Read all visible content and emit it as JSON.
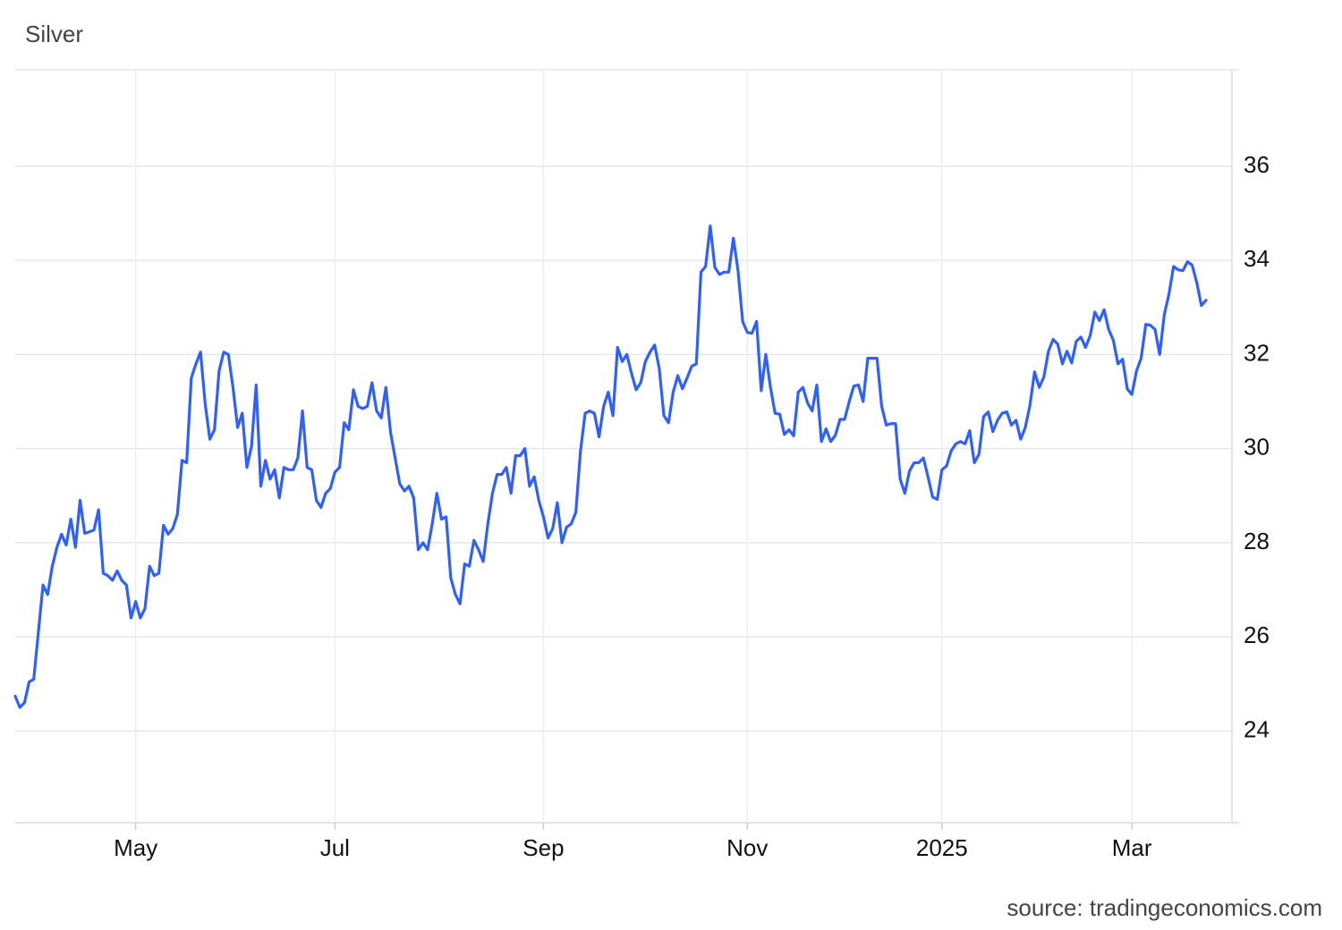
{
  "chart_data": {
    "type": "line",
    "title": "Silver",
    "source": "source: tradingeconomics.com",
    "color": "#2f5fff",
    "grid": true,
    "ylim": [
      22.05,
      38.05
    ],
    "yticks": [
      24,
      26,
      28,
      30,
      32,
      34,
      36
    ],
    "categories": [
      null,
      null,
      null,
      null,
      null,
      null,
      null,
      null,
      null,
      null,
      null,
      null,
      null,
      null,
      null,
      null,
      null,
      null,
      null,
      null,
      null,
      null,
      null,
      null,
      null,
      null,
      "May",
      null,
      null,
      null,
      null,
      null,
      null,
      null,
      null,
      null,
      null,
      null,
      null,
      null,
      null,
      null,
      null,
      null,
      null,
      null,
      null,
      null,
      null,
      null,
      null,
      null,
      null,
      null,
      null,
      null,
      null,
      null,
      null,
      null,
      null,
      null,
      null,
      null,
      null,
      null,
      null,
      null,
      null,
      "Jul",
      null,
      null,
      null,
      null,
      null,
      null,
      null,
      null,
      null,
      null,
      null,
      null,
      null,
      null,
      null,
      null,
      null,
      null,
      null,
      null,
      null,
      null,
      null,
      null,
      null,
      null,
      null,
      null,
      null,
      null,
      null,
      null,
      null,
      null,
      null,
      null,
      null,
      null,
      null,
      null,
      null,
      null,
      null,
      null,
      "Sep",
      null,
      null,
      null,
      null,
      null,
      null,
      null,
      null,
      null,
      null,
      null,
      null,
      null,
      null,
      null,
      null,
      null,
      null,
      null,
      null,
      null,
      null,
      null,
      null,
      null,
      null,
      null,
      null,
      null,
      null,
      null,
      null,
      null,
      null,
      null,
      null,
      null,
      null,
      null,
      null,
      null,
      null,
      null,
      "Nov",
      null,
      null,
      null,
      null,
      null,
      null,
      null,
      null,
      null,
      null,
      null,
      null,
      null,
      null,
      null,
      null,
      null,
      null,
      null,
      null,
      null,
      null,
      null,
      null,
      null,
      null,
      null,
      null,
      null,
      null,
      null,
      null,
      null,
      null,
      null,
      null,
      null,
      null,
      null,
      null,
      null,
      "2025",
      null,
      null,
      null,
      null,
      null,
      null,
      null,
      null,
      null,
      null,
      null,
      null,
      null,
      null,
      null,
      null,
      null,
      null,
      null,
      null,
      null,
      null,
      null,
      null,
      null,
      null,
      null,
      null,
      null,
      null,
      null,
      null,
      null,
      null,
      null,
      null,
      null,
      null,
      null,
      null,
      "Mar",
      null,
      null,
      null,
      null,
      null,
      null,
      null,
      null,
      null,
      null,
      null,
      null,
      null,
      null,
      null,
      null
    ],
    "values": [
      24.74,
      24.5,
      24.6,
      25.04,
      25.1,
      26.1,
      27.1,
      26.9,
      27.5,
      27.9,
      28.18,
      27.95,
      28.5,
      27.9,
      28.9,
      28.2,
      28.23,
      28.27,
      28.7,
      27.35,
      27.3,
      27.2,
      27.4,
      27.2,
      27.1,
      26.4,
      26.75,
      26.4,
      26.6,
      27.5,
      27.3,
      27.35,
      28.37,
      28.18,
      28.3,
      28.6,
      29.75,
      29.7,
      31.5,
      31.8,
      32.05,
      30.95,
      30.2,
      30.4,
      31.65,
      32.05,
      32.0,
      31.3,
      30.45,
      30.75,
      29.6,
      30.05,
      31.35,
      29.2,
      29.75,
      29.35,
      29.55,
      28.95,
      29.6,
      29.55,
      29.55,
      29.8,
      30.8,
      29.6,
      29.55,
      28.9,
      28.75,
      29.05,
      29.15,
      29.5,
      29.6,
      30.55,
      30.4,
      31.25,
      30.9,
      30.85,
      30.9,
      31.4,
      30.8,
      30.65,
      31.3,
      30.35,
      29.8,
      29.25,
      29.1,
      29.2,
      28.95,
      27.85,
      28.0,
      27.85,
      28.4,
      29.05,
      28.5,
      28.55,
      27.25,
      26.9,
      26.7,
      27.55,
      27.5,
      28.05,
      27.85,
      27.6,
      28.4,
      29.05,
      29.45,
      29.45,
      29.6,
      29.05,
      29.85,
      29.85,
      30.0,
      29.2,
      29.4,
      28.9,
      28.55,
      28.1,
      28.3,
      28.85,
      28.0,
      28.33,
      28.4,
      28.65,
      29.95,
      30.75,
      30.8,
      30.75,
      30.25,
      30.9,
      31.2,
      30.7,
      32.15,
      31.85,
      32.0,
      31.6,
      31.25,
      31.4,
      31.85,
      32.05,
      32.2,
      31.7,
      30.7,
      30.55,
      31.2,
      31.55,
      31.27,
      31.5,
      31.75,
      31.8,
      33.75,
      33.87,
      34.73,
      33.85,
      33.7,
      33.75,
      33.75,
      34.47,
      33.78,
      32.7,
      32.47,
      32.45,
      32.7,
      31.23,
      32.0,
      31.3,
      30.75,
      30.73,
      30.3,
      30.4,
      30.27,
      31.2,
      31.3,
      30.97,
      30.8,
      31.35,
      30.15,
      30.42,
      30.15,
      30.28,
      30.62,
      30.62,
      31.0,
      31.33,
      31.35,
      31.0,
      31.92,
      31.92,
      31.92,
      30.9,
      30.5,
      30.53,
      30.53,
      29.35,
      29.05,
      29.52,
      29.7,
      29.7,
      29.8,
      29.4,
      28.97,
      28.92,
      29.55,
      29.63,
      29.95,
      30.1,
      30.15,
      30.1,
      30.38,
      29.7,
      29.88,
      30.68,
      30.78,
      30.36,
      30.6,
      30.75,
      30.78,
      30.5,
      30.6,
      30.2,
      30.45,
      30.92,
      31.63,
      31.3,
      31.52,
      32.07,
      32.32,
      32.22,
      31.8,
      32.07,
      31.82,
      32.28,
      32.37,
      32.15,
      32.4,
      32.9,
      32.72,
      32.95,
      32.53,
      32.3,
      31.8,
      31.9,
      31.27,
      31.15,
      31.65,
      31.92,
      32.64,
      32.62,
      32.53,
      32.0,
      32.85,
      33.28,
      33.87,
      33.8,
      33.78,
      33.97,
      33.9,
      33.53,
      33.04,
      33.15
    ]
  }
}
